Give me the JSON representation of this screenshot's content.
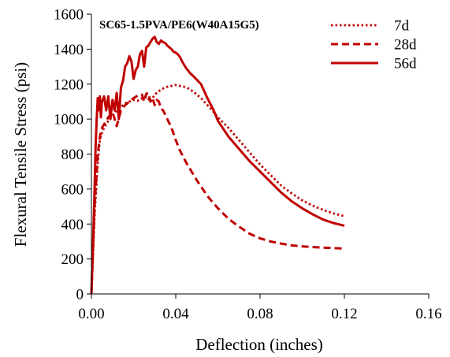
{
  "chart_data": {
    "type": "line",
    "title": "SC65-1.5PVA/PE6(W40A15G5)",
    "xlabel": "Deflection (inches)",
    "ylabel": "Flexural Tensile Stress (psi)",
    "xlim": [
      0,
      0.16
    ],
    "ylim": [
      0,
      1600
    ],
    "xticks": [
      0,
      0.04,
      0.08,
      0.12,
      0.16
    ],
    "xtick_labels": [
      "0.00",
      "0.04",
      "0.08",
      "0.12",
      "0.16"
    ],
    "yticks": [
      0,
      200,
      400,
      600,
      800,
      1000,
      1200,
      1400,
      1600
    ],
    "ytick_labels": [
      "0",
      "200",
      "400",
      "600",
      "800",
      "1000",
      "1200",
      "1400",
      "1600"
    ],
    "grid": false,
    "legend_position": "top-right",
    "line_color": "#c00000",
    "series": [
      {
        "name": "7d",
        "style": "dotted",
        "points": [
          [
            0,
            0
          ],
          [
            0.0015,
            450
          ],
          [
            0.003,
            750
          ],
          [
            0.004,
            880
          ],
          [
            0.005,
            920
          ],
          [
            0.006,
            950
          ],
          [
            0.008,
            990
          ],
          [
            0.01,
            1020
          ],
          [
            0.012,
            1050
          ],
          [
            0.014,
            1070
          ],
          [
            0.016,
            1090
          ],
          [
            0.018,
            1100
          ],
          [
            0.02,
            1110
          ],
          [
            0.022,
            1105
          ],
          [
            0.024,
            1120
          ],
          [
            0.026,
            1130
          ],
          [
            0.028,
            1100
          ],
          [
            0.03,
            1140
          ],
          [
            0.032,
            1160
          ],
          [
            0.034,
            1175
          ],
          [
            0.036,
            1185
          ],
          [
            0.038,
            1190
          ],
          [
            0.04,
            1195
          ],
          [
            0.042,
            1190
          ],
          [
            0.044,
            1185
          ],
          [
            0.046,
            1175
          ],
          [
            0.048,
            1160
          ],
          [
            0.05,
            1140
          ],
          [
            0.052,
            1120
          ],
          [
            0.055,
            1080
          ],
          [
            0.058,
            1040
          ],
          [
            0.06,
            1010
          ],
          [
            0.065,
            950
          ],
          [
            0.07,
            880
          ],
          [
            0.075,
            810
          ],
          [
            0.08,
            740
          ],
          [
            0.085,
            680
          ],
          [
            0.09,
            620
          ],
          [
            0.095,
            575
          ],
          [
            0.1,
            535
          ],
          [
            0.105,
            505
          ],
          [
            0.11,
            480
          ],
          [
            0.115,
            460
          ],
          [
            0.12,
            445
          ]
        ]
      },
      {
        "name": "28d",
        "style": "dashed",
        "points": [
          [
            0,
            0
          ],
          [
            0.0015,
            500
          ],
          [
            0.003,
            800
          ],
          [
            0.004,
            900
          ],
          [
            0.005,
            950
          ],
          [
            0.006,
            970
          ],
          [
            0.008,
            1010
          ],
          [
            0.01,
            1040
          ],
          [
            0.012,
            960
          ],
          [
            0.014,
            1050
          ],
          [
            0.016,
            1080
          ],
          [
            0.018,
            1100
          ],
          [
            0.02,
            1120
          ],
          [
            0.022,
            1135
          ],
          [
            0.024,
            1140
          ],
          [
            0.025,
            1100
          ],
          [
            0.026,
            1145
          ],
          [
            0.027,
            1150
          ],
          [
            0.028,
            1100
          ],
          [
            0.029,
            1120
          ],
          [
            0.03,
            1080
          ],
          [
            0.031,
            1110
          ],
          [
            0.032,
            1100
          ],
          [
            0.033,
            1060
          ],
          [
            0.034,
            1050
          ],
          [
            0.036,
            1000
          ],
          [
            0.038,
            950
          ],
          [
            0.04,
            880
          ],
          [
            0.042,
            820
          ],
          [
            0.045,
            750
          ],
          [
            0.05,
            650
          ],
          [
            0.055,
            560
          ],
          [
            0.06,
            490
          ],
          [
            0.065,
            430
          ],
          [
            0.07,
            385
          ],
          [
            0.075,
            345
          ],
          [
            0.08,
            318
          ],
          [
            0.085,
            300
          ],
          [
            0.09,
            288
          ],
          [
            0.095,
            278
          ],
          [
            0.1,
            272
          ],
          [
            0.105,
            268
          ],
          [
            0.11,
            265
          ],
          [
            0.115,
            262
          ],
          [
            0.12,
            260
          ]
        ]
      },
      {
        "name": "56d",
        "style": "solid",
        "points": [
          [
            0,
            0
          ],
          [
            0.0008,
            300
          ],
          [
            0.0015,
            600
          ],
          [
            0.002,
            850
          ],
          [
            0.0025,
            1000
          ],
          [
            0.003,
            1120
          ],
          [
            0.0035,
            1050
          ],
          [
            0.004,
            1130
          ],
          [
            0.0045,
            1010
          ],
          [
            0.005,
            1100
          ],
          [
            0.006,
            1130
          ],
          [
            0.007,
            1050
          ],
          [
            0.008,
            1130
          ],
          [
            0.009,
            1000
          ],
          [
            0.01,
            1110
          ],
          [
            0.011,
            1050
          ],
          [
            0.012,
            1150
          ],
          [
            0.013,
            1000
          ],
          [
            0.014,
            1180
          ],
          [
            0.015,
            1220
          ],
          [
            0.016,
            1300
          ],
          [
            0.017,
            1320
          ],
          [
            0.018,
            1360
          ],
          [
            0.019,
            1330
          ],
          [
            0.02,
            1230
          ],
          [
            0.021,
            1280
          ],
          [
            0.022,
            1300
          ],
          [
            0.023,
            1370
          ],
          [
            0.024,
            1390
          ],
          [
            0.025,
            1300
          ],
          [
            0.026,
            1410
          ],
          [
            0.027,
            1420
          ],
          [
            0.028,
            1440
          ],
          [
            0.029,
            1460
          ],
          [
            0.03,
            1470
          ],
          [
            0.031,
            1440
          ],
          [
            0.032,
            1430
          ],
          [
            0.033,
            1450
          ],
          [
            0.034,
            1440
          ],
          [
            0.035,
            1435
          ],
          [
            0.036,
            1420
          ],
          [
            0.037,
            1410
          ],
          [
            0.038,
            1400
          ],
          [
            0.039,
            1385
          ],
          [
            0.04,
            1380
          ],
          [
            0.041,
            1370
          ],
          [
            0.042,
            1355
          ],
          [
            0.043,
            1330
          ],
          [
            0.044,
            1310
          ],
          [
            0.045,
            1290
          ],
          [
            0.046,
            1275
          ],
          [
            0.047,
            1260
          ],
          [
            0.048,
            1250
          ],
          [
            0.05,
            1225
          ],
          [
            0.052,
            1200
          ],
          [
            0.055,
            1120
          ],
          [
            0.058,
            1050
          ],
          [
            0.06,
            990
          ],
          [
            0.065,
            900
          ],
          [
            0.07,
            830
          ],
          [
            0.075,
            760
          ],
          [
            0.08,
            700
          ],
          [
            0.085,
            640
          ],
          [
            0.09,
            580
          ],
          [
            0.095,
            530
          ],
          [
            0.1,
            490
          ],
          [
            0.105,
            455
          ],
          [
            0.11,
            425
          ],
          [
            0.115,
            405
          ],
          [
            0.12,
            390
          ]
        ]
      }
    ]
  }
}
